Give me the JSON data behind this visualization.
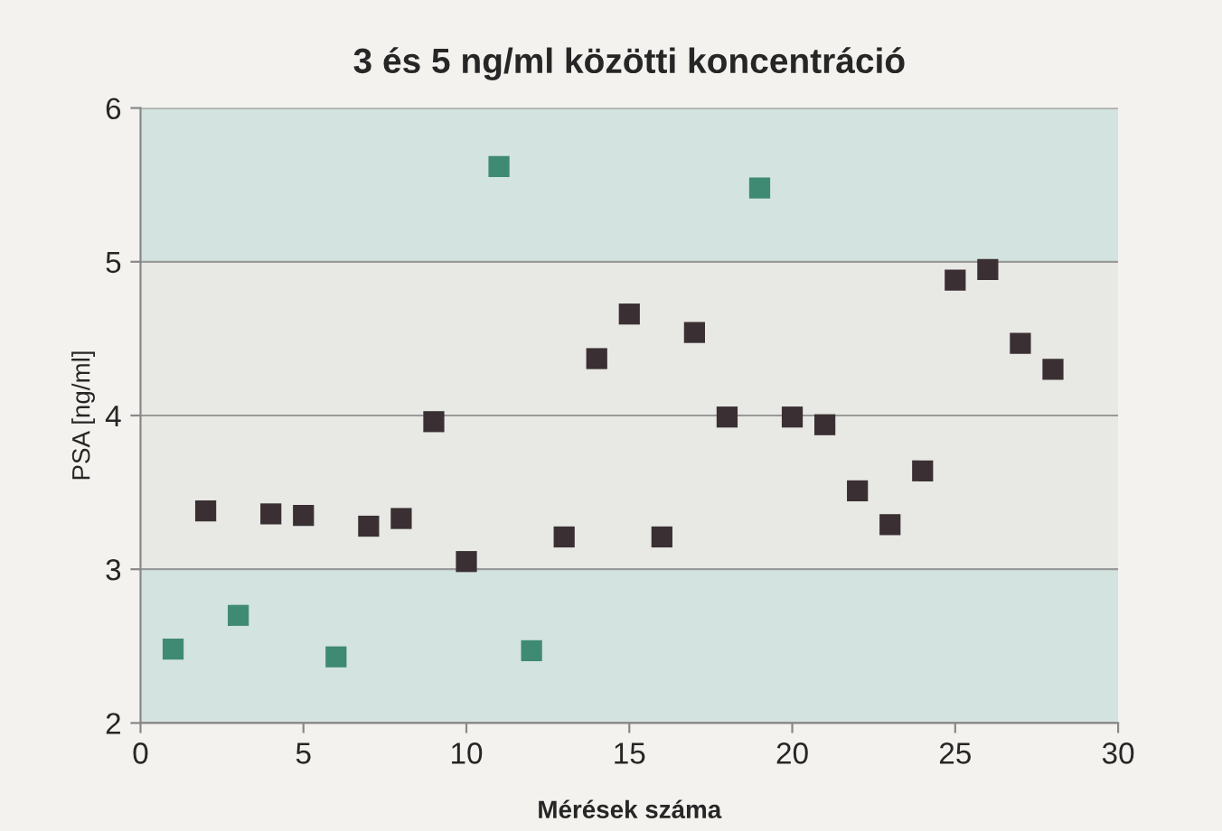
{
  "chart_data": {
    "type": "scatter",
    "title": "3 és 5 ng/ml közötti koncentráció",
    "xlabel": "Mérések száma",
    "ylabel": "PSA [ng/ml]",
    "series": [
      {
        "color": "#3a3033",
        "x": [
          2,
          4,
          5,
          7,
          8,
          9,
          10,
          13,
          14,
          15,
          16,
          17,
          18,
          20,
          21,
          22,
          23,
          24,
          25,
          26,
          27,
          28
        ],
        "values": [
          3.38,
          3.36,
          3.35,
          3.28,
          3.33,
          3.96,
          3.05,
          3.21,
          4.37,
          4.66,
          3.21,
          4.54,
          3.99,
          3.99,
          3.94,
          3.51,
          3.29,
          3.64,
          4.88,
          4.95,
          4.47,
          4.3
        ]
      },
      {
        "color": "#3f8a73",
        "x": [
          1,
          3,
          6,
          11,
          12,
          19
        ],
        "values": [
          2.48,
          2.7,
          2.43,
          5.62,
          2.47,
          5.48
        ]
      }
    ],
    "xlim": [
      0,
      30
    ],
    "xticks": [
      0,
      5,
      10,
      15,
      20,
      25,
      30
    ],
    "ylim": [
      2,
      6
    ],
    "yticks": [
      2,
      3,
      4,
      5,
      6
    ],
    "grid": "y",
    "marker": "square",
    "bands": [
      {
        "axis": "y",
        "from": 2,
        "to": 3,
        "color": "#d3e3df"
      },
      {
        "axis": "y",
        "from": 3,
        "to": 5,
        "color": "#e8e8e5"
      },
      {
        "axis": "y",
        "from": 5,
        "to": 6,
        "color": "#d3e3df"
      }
    ]
  }
}
